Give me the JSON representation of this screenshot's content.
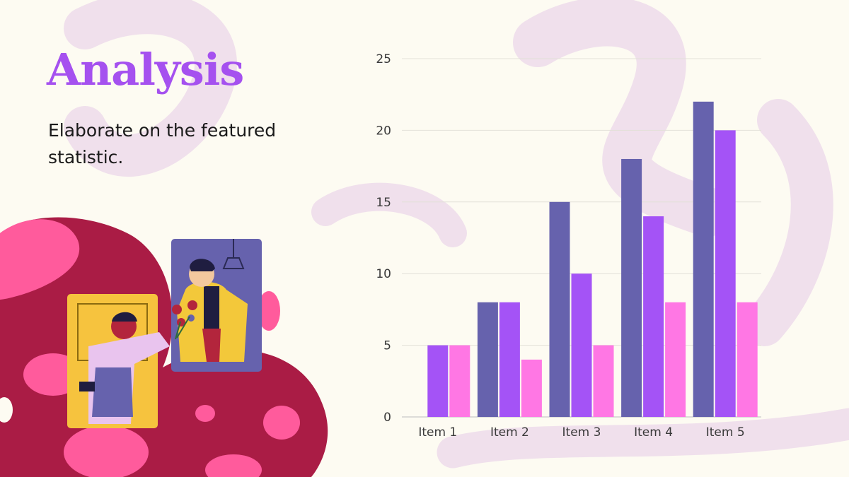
{
  "slide": {
    "title": "Analysis",
    "subtitle": "Elaborate on the featured statistic."
  },
  "colors": {
    "title": "#a551ef",
    "background": "#fdfbf2",
    "series": [
      "#6662ad",
      "#a453f6",
      "#ff77e4"
    ],
    "blob_dark": "#aa1c45",
    "blob_pink": "#ff5b9c"
  },
  "chart_data": {
    "type": "bar",
    "categories": [
      "Item 1",
      "Item 2",
      "Item 3",
      "Item 4",
      "Item 5"
    ],
    "series": [
      {
        "values": [
          0,
          8,
          15,
          18,
          22
        ]
      },
      {
        "values": [
          5,
          8,
          10,
          14,
          20
        ]
      },
      {
        "values": [
          5,
          4,
          5,
          8,
          8
        ]
      }
    ],
    "ylim": [
      0,
      25
    ],
    "yticks": [
      0,
      5,
      10,
      15,
      20,
      25
    ],
    "grid": true,
    "legend": "none",
    "xlabel": "",
    "ylabel": ""
  }
}
